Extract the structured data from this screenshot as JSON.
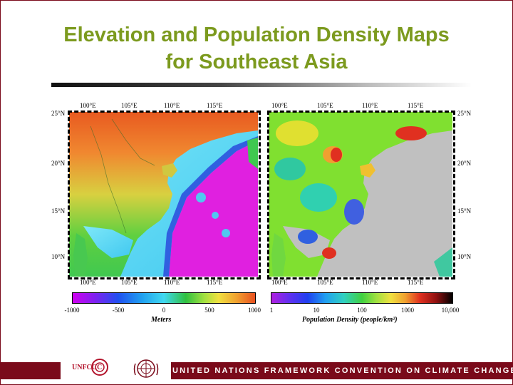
{
  "slide": {
    "title_line1": "Elevation and Population Density Maps",
    "title_line2": "for Southeast Asia",
    "footer_text": "UNITED NATIONS FRAMEWORK CONVENTION ON CLIMATE CHANGE",
    "logo_text": "UNFCCC",
    "colors": {
      "title": "#7c9a1e",
      "brand": "#7a0a1a",
      "land": "#c0c0c0",
      "sea_deep": "#e020e0",
      "sea_shallow": "#60d8f0"
    }
  },
  "maps": {
    "elevation": {
      "top_ticks": [
        "100°E",
        "105°E",
        "110°E",
        "115°E"
      ],
      "bottom_ticks": [
        "100°E",
        "105°E",
        "110°E",
        "115°E"
      ],
      "left_ticks": [
        "25°N",
        "20°N",
        "15°N",
        "10°N"
      ],
      "colorbar_ticks": [
        "-1000",
        "-500",
        "0",
        "500",
        "1000"
      ],
      "colorbar_title": "Meters"
    },
    "population": {
      "top_ticks": [
        "100°E",
        "105°E",
        "110°E",
        "115°E"
      ],
      "bottom_ticks": [
        "100°E",
        "105°E",
        "110°E",
        "115°E"
      ],
      "right_ticks": [
        "25°N",
        "20°N",
        "15°N",
        "10°N"
      ],
      "colorbar_ticks": [
        "1",
        "10",
        "100",
        "1000",
        "10,000"
      ],
      "colorbar_title": "Population Density (people/km²)"
    }
  }
}
